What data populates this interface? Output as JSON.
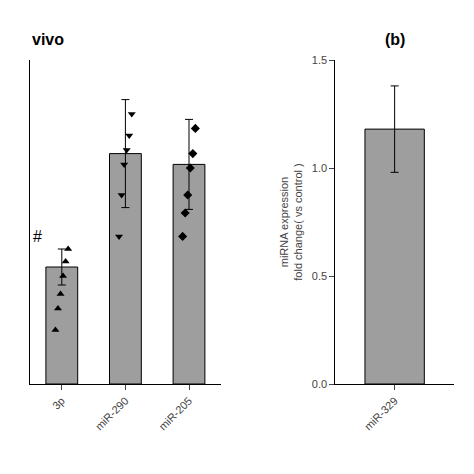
{
  "chart_data": [
    {
      "type": "bar",
      "title": "vivo",
      "categories": [
        "3p",
        "miR-290",
        "miR-205"
      ],
      "values": [
        0.65,
        1.28,
        1.22
      ],
      "errors": [
        0.1,
        0.3,
        0.25
      ],
      "color": "#9e9e9e",
      "points": [
        {
          "category": "3p",
          "values": [
            0.3,
            0.42,
            0.5,
            0.6,
            0.68,
            0.75
          ],
          "marker": "triangle-up"
        },
        {
          "category": "miR-290",
          "values": [
            0.82,
            1.05,
            1.22,
            1.3,
            1.38,
            1.5
          ],
          "marker": "triangle-down"
        },
        {
          "category": "miR-205",
          "values": [
            0.82,
            0.95,
            1.05,
            1.2,
            1.28,
            1.42
          ],
          "marker": "diamond"
        }
      ],
      "annotations": [
        {
          "text": "#",
          "category": "3p",
          "y": 0.82
        }
      ],
      "ylim": [
        0,
        1.8
      ],
      "tick_labels": "x",
      "grid": false
    },
    {
      "type": "bar",
      "title": "(b)",
      "categories": [
        "miR-329"
      ],
      "values": [
        1.18
      ],
      "errors": [
        0.2
      ],
      "color": "#9e9e9e",
      "ylabel": "miRNA expression\nfold change( vs control )",
      "ylim": [
        0,
        1.5
      ],
      "yticks": [
        {
          "value": 0.0,
          "label": "0.0"
        },
        {
          "value": 0.5,
          "label": "0.5"
        },
        {
          "value": 1.0,
          "label": "1.0"
        },
        {
          "value": 1.5,
          "label": "1.5"
        }
      ],
      "grid": false
    }
  ]
}
